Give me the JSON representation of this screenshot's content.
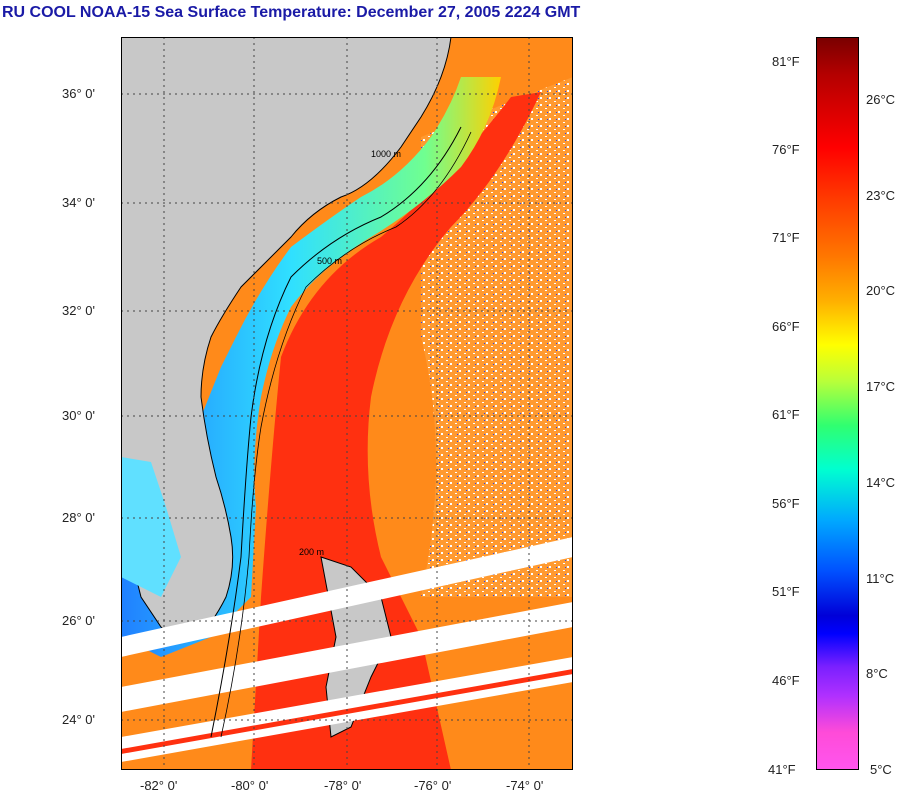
{
  "title": "RU COOL  NOAA-15  Sea Surface Temperature:  December 27, 2005 2224 GMT",
  "lat_labels": [
    "36° 0'",
    "34° 0'",
    "32° 0'",
    "30° 0'",
    "28° 0'",
    "26° 0'",
    "24° 0'"
  ],
  "lon_labels": [
    "-82° 0'",
    "-80° 0'",
    "-78° 0'",
    "-76° 0'",
    "-74° 0'"
  ],
  "colorbar": {
    "fahrenheit": [
      "81°F",
      "76°F",
      "71°F",
      "66°F",
      "61°F",
      "56°F",
      "51°F",
      "46°F",
      "41°F"
    ],
    "celsius": [
      "26°C",
      "23°C",
      "20°C",
      "17°C",
      "14°C",
      "11°C",
      "8°C",
      "5°C"
    ]
  },
  "map_labels": {
    "isobath_labels": [
      "200 m",
      "500 m",
      "1000 m"
    ]
  },
  "colors": {
    "land": "#c8c8c8",
    "title": "#1a1aa6",
    "gulf_stream": "#ff3a10",
    "offshore": "#ff9a20",
    "cold_shelf": "#40e0f0"
  }
}
